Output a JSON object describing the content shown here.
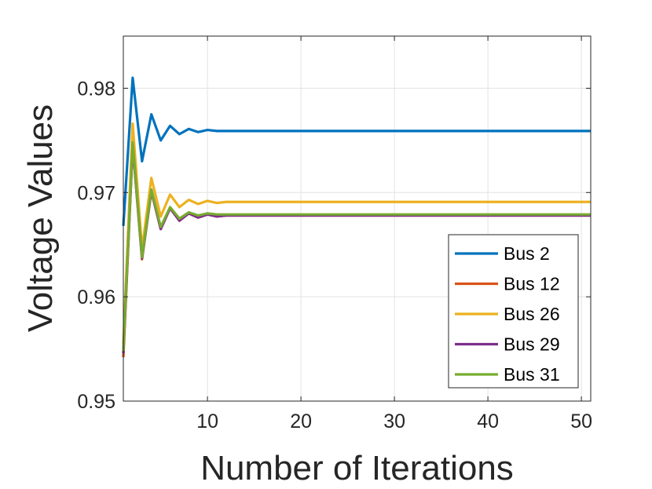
{
  "chart_data": {
    "type": "line",
    "title": "",
    "xlabel": "Number of Iterations",
    "ylabel": "Voltage Values",
    "xlim": [
      1,
      51
    ],
    "ylim": [
      0.95,
      0.985
    ],
    "xticks": [
      10,
      20,
      30,
      40,
      50
    ],
    "yticks": [
      0.95,
      0.96,
      0.97,
      0.98
    ],
    "xtick_labels": [
      "10",
      "20",
      "30",
      "40",
      "50"
    ],
    "ytick_labels": [
      "0.95",
      "0.96",
      "0.97",
      "0.98"
    ],
    "grid": true,
    "legend_position": "bottom-right",
    "series": [
      {
        "name": "Bus 2",
        "color": "#0072BD",
        "x": [
          1,
          2,
          3,
          4,
          5,
          6,
          7,
          8,
          9,
          10,
          11,
          12,
          13,
          14,
          15,
          51
        ],
        "values": [
          0.9668,
          0.981,
          0.973,
          0.9775,
          0.975,
          0.9764,
          0.9756,
          0.9761,
          0.9758,
          0.976,
          0.9759,
          0.9759,
          0.9759,
          0.9759,
          0.9759,
          0.9759
        ]
      },
      {
        "name": "Bus 12",
        "color": "#D95319",
        "x": [
          1,
          2,
          3,
          4,
          5,
          6,
          7,
          8,
          9,
          10,
          11,
          12,
          13,
          14,
          15,
          51
        ],
        "values": [
          0.9542,
          0.9745,
          0.9636,
          0.9701,
          0.9665,
          0.9685,
          0.9673,
          0.968,
          0.9676,
          0.9679,
          0.9677,
          0.9678,
          0.9678,
          0.9678,
          0.9678,
          0.9678
        ]
      },
      {
        "name": "Bus 26",
        "color": "#EDB120",
        "x": [
          1,
          2,
          3,
          4,
          5,
          6,
          7,
          8,
          9,
          10,
          11,
          12,
          13,
          14,
          15,
          51
        ],
        "values": [
          0.9555,
          0.9766,
          0.9646,
          0.9714,
          0.9677,
          0.9698,
          0.9686,
          0.9693,
          0.9689,
          0.9692,
          0.969,
          0.9691,
          0.9691,
          0.9691,
          0.9691,
          0.9691
        ]
      },
      {
        "name": "Bus 29",
        "color": "#7E2F8E",
        "x": [
          1,
          2,
          3,
          4,
          5,
          6,
          7,
          8,
          9,
          10,
          11,
          12,
          13,
          14,
          15,
          51
        ],
        "values": [
          0.9546,
          0.9746,
          0.9637,
          0.9702,
          0.9665,
          0.9685,
          0.9673,
          0.968,
          0.9676,
          0.9679,
          0.9677,
          0.9678,
          0.9678,
          0.9678,
          0.9678,
          0.9678
        ]
      },
      {
        "name": "Bus 31",
        "color": "#77AC30",
        "x": [
          1,
          2,
          3,
          4,
          5,
          6,
          7,
          8,
          9,
          10,
          11,
          12,
          13,
          14,
          15,
          51
        ],
        "values": [
          0.9548,
          0.9748,
          0.9638,
          0.9703,
          0.9667,
          0.9686,
          0.9675,
          0.9681,
          0.9678,
          0.968,
          0.9679,
          0.9679,
          0.9679,
          0.9679,
          0.9679,
          0.9679
        ]
      }
    ]
  }
}
